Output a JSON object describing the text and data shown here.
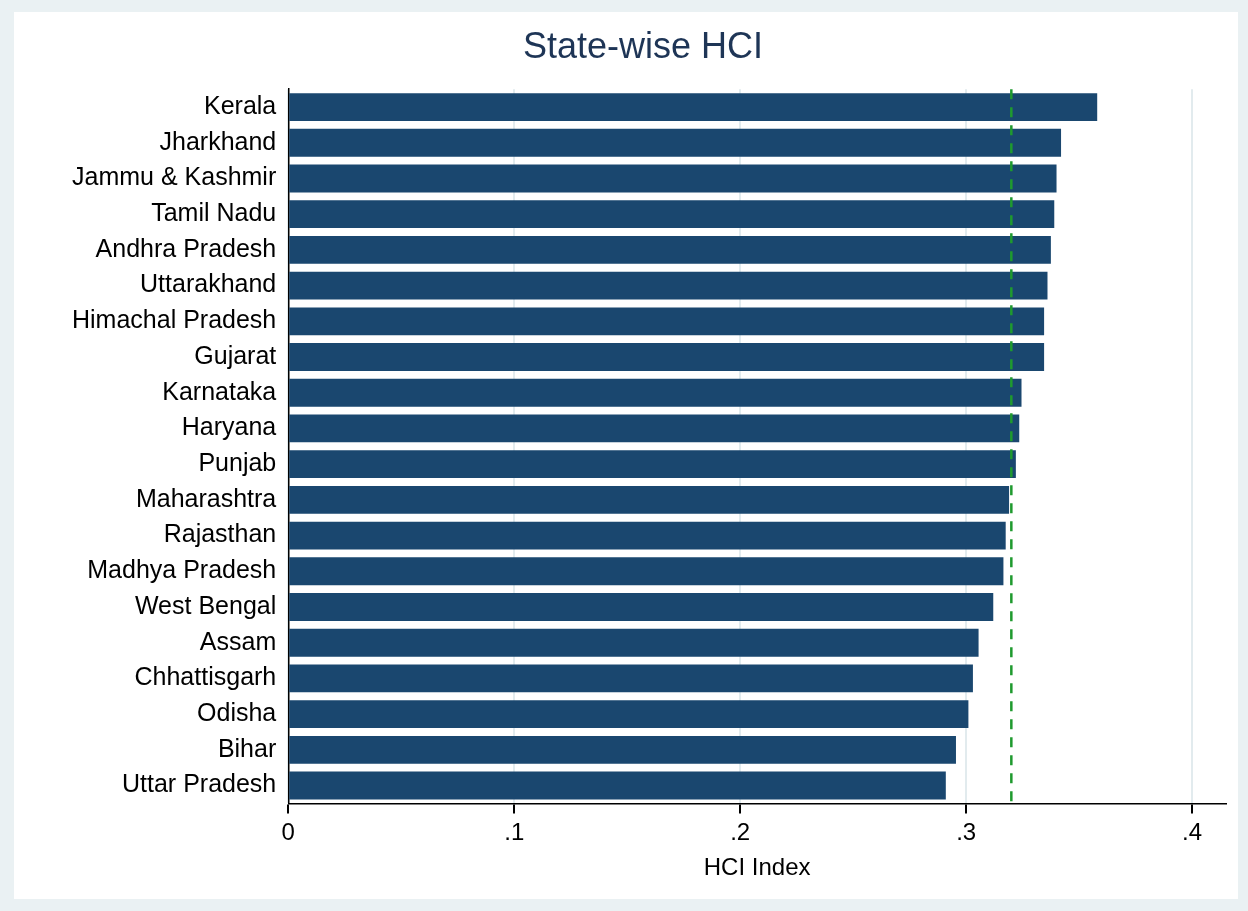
{
  "chart_data": {
    "type": "bar",
    "orientation": "horizontal",
    "title": "State-wise HCI",
    "xlabel": "HCI Index",
    "categories": [
      "Kerala",
      "Jharkhand",
      "Jammu & Kashmir",
      "Tamil Nadu",
      "Andhra Pradesh",
      "Uttarakhand",
      "Himachal Pradesh",
      "Gujarat",
      "Karnataka",
      "Haryana",
      "Punjab",
      "Maharashtra",
      "Rajasthan",
      "Madhya Pradesh",
      "West Bengal",
      "Assam",
      "Chhattisgarh",
      "Odisha",
      "Bihar",
      "Uttar Pradesh"
    ],
    "values": [
      0.358,
      0.342,
      0.34,
      0.339,
      0.3375,
      0.336,
      0.3345,
      0.3345,
      0.3245,
      0.3235,
      0.322,
      0.319,
      0.3175,
      0.3165,
      0.312,
      0.3055,
      0.303,
      0.301,
      0.2955,
      0.291
    ],
    "color": "#1a476f",
    "xlim": [
      0,
      0.415
    ],
    "xticks": [
      0,
      {
        "value": 0.1,
        "label": ".1"
      },
      {
        "value": 0.2,
        "label": ".2"
      },
      {
        "value": 0.3,
        "label": ".3"
      },
      {
        "value": 0.4,
        "label": ".4"
      }
    ],
    "ref_lines": [
      {
        "axis": "x",
        "value": 0.32,
        "color": "#1f9a2e",
        "line_style": "dashed"
      }
    ],
    "grid": "x",
    "legend": false
  }
}
